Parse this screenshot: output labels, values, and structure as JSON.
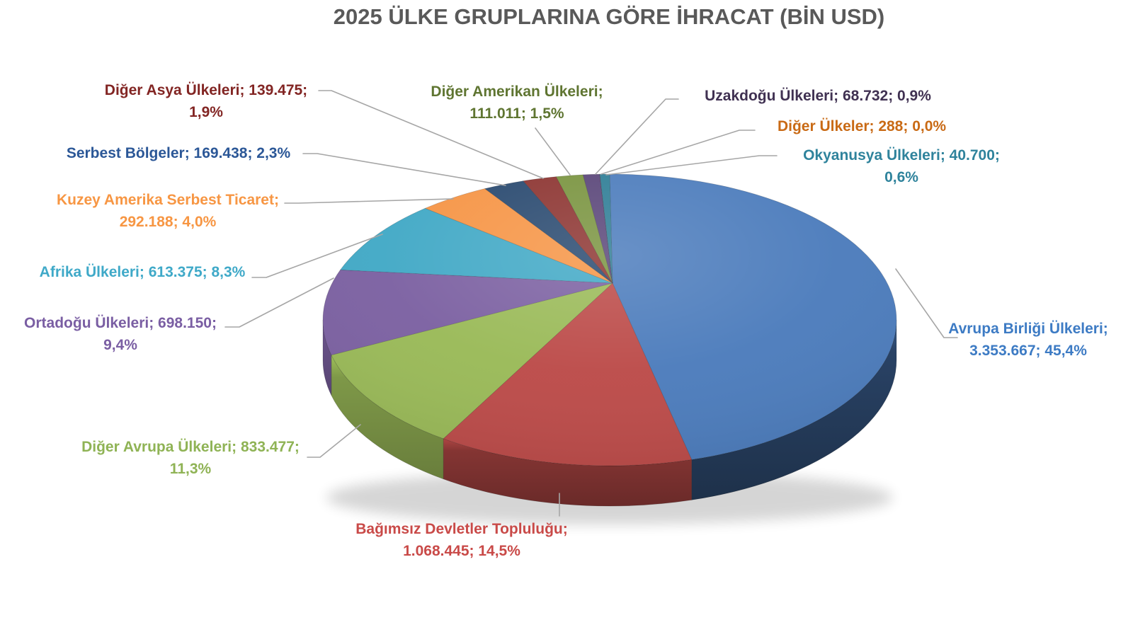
{
  "title": {
    "text": "2025 ÜLKE GRUPLARINA GÖRE İHRACAT (BİN USD)",
    "color": "#595959"
  },
  "chart_data": {
    "type": "pie",
    "style": "3d",
    "title": "2025 ÜLKE GRUPLARINA GÖRE İHRACAT (BİN USD)",
    "unit": "BİN USD",
    "legend_position": "none",
    "label_format": "name; value; percent",
    "leader_line_color": "#A6A6A6",
    "start_angle_deg": 0,
    "direction": "clockwise",
    "slices": [
      {
        "name": "Avrupa Birliği Ülkeleri",
        "value": 3353667,
        "value_text": "3.353.667",
        "pct": 45.4,
        "pct_text": "45,4%",
        "color": "#4C7CBC",
        "label_color": "#3D7BC4",
        "label": "Avrupa Birliği Ülkeleri; 3.353.667; 45,4%",
        "label_lines": [
          "Avrupa Birliği Ülkeleri;",
          "3.353.667; 45,4%"
        ]
      },
      {
        "name": "Bağımsız Devletler Topluluğu",
        "value": 1068445,
        "value_text": "1.068.445",
        "pct": 14.5,
        "pct_text": "14,5%",
        "color": "#BC4B49",
        "label_color": "#C94A48",
        "label": "Bağımsız Devletler Topluluğu; 1.068.445; 14,5%",
        "label_lines": [
          "Bağımsız Devletler Topluluğu;",
          "1.068.445; 14,5%"
        ]
      },
      {
        "name": "Diğer Avrupa Ülkeleri",
        "value": 833477,
        "value_text": "833.477",
        "pct": 11.3,
        "pct_text": "11,3%",
        "color": "#9ABA58",
        "label_color": "#8FB355",
        "label": "Diğer Avrupa Ülkeleri; 833.477; 11,3%",
        "label_lines": [
          "Diğer Avrupa Ülkeleri; 833.477;",
          "11,3%"
        ]
      },
      {
        "name": "Ortadoğu Ülkeleri",
        "value": 698150,
        "value_text": "698.150",
        "pct": 9.4,
        "pct_text": "9,4%",
        "color": "#7C61A2",
        "label_color": "#7A5EA3",
        "label": "Ortadoğu Ülkeleri; 698.150; 9,4%",
        "label_lines": [
          "Ortadoğu Ülkeleri; 698.150;",
          "9,4%"
        ]
      },
      {
        "name": "Afrika Ülkeleri",
        "value": 613375,
        "value_text": "613.375",
        "pct": 8.3,
        "pct_text": "8,3%",
        "color": "#42A9C6",
        "label_color": "#3FA9C8",
        "label": "Afrika Ülkeleri; 613.375; 8,3%",
        "label_lines": [
          "Afrika Ülkeleri; 613.375; 8,3%"
        ]
      },
      {
        "name": "Kuzey Amerika Serbest Ticaret",
        "value": 292188,
        "value_text": "292.188",
        "pct": 4.0,
        "pct_text": "4,0%",
        "color": "#F69546",
        "label_color": "#F79643",
        "label": "Kuzey Amerika Serbest Ticaret; 292.188; 4,0%",
        "label_lines": [
          "Kuzey Amerika Serbest Ticaret;",
          "292.188; 4,0%"
        ]
      },
      {
        "name": "Serbest Bölgeler",
        "value": 169438,
        "value_text": "169.438",
        "pct": 2.3,
        "pct_text": "2,3%",
        "color": "#2A4A70",
        "label_color": "#2B5797",
        "label": "Serbest Bölgeler; 169.438; 2,3%",
        "label_lines": [
          "Serbest Bölgeler; 169.438; 2,3%"
        ]
      },
      {
        "name": "Diğer Asya Ülkeleri",
        "value": 139475,
        "value_text": "139.475",
        "pct": 1.9,
        "pct_text": "1,9%",
        "color": "#8D3532",
        "label_color": "#822523",
        "label": "Diğer Asya Ülkeleri; 139.475; 1,9%",
        "label_lines": [
          "Diğer Asya Ülkeleri; 139.475;",
          "1,9%"
        ]
      },
      {
        "name": "Diğer Amerikan Ülkeleri",
        "value": 111011,
        "value_text": "111.011",
        "pct": 1.5,
        "pct_text": "1,5%",
        "color": "#7A9440",
        "label_color": "#5F7531",
        "label": "Diğer Amerikan Ülkeleri; 111.011; 1,5%",
        "label_lines": [
          "Diğer Amerikan Ülkeleri;",
          "111.011; 1,5%"
        ]
      },
      {
        "name": "Uzakdoğu Ülkeleri",
        "value": 68732,
        "value_text": "68.732",
        "pct": 0.9,
        "pct_text": "0,9%",
        "color": "#5A4679",
        "label_color": "#403152",
        "label": "Uzakdoğu Ülkeleri; 68.732; 0,9%",
        "label_lines": [
          "Uzakdoğu Ülkeleri; 68.732; 0,9%"
        ]
      },
      {
        "name": "Diğer Ülkeler",
        "value": 288,
        "value_text": "288",
        "pct": 0.0,
        "pct_text": "0,0%",
        "color": "#E46C0A",
        "label_color": "#C96A15",
        "label": "Diğer Ülkeler; 288; 0,0%",
        "label_lines": [
          "Diğer Ülkeler; 288; 0,0%"
        ]
      },
      {
        "name": "Okyanusya Ülkeleri",
        "value": 40700,
        "value_text": "40.700",
        "pct": 0.6,
        "pct_text": "0,6%",
        "color": "#2F7E96",
        "label_color": "#2F839C",
        "label": "Okyanusya Ülkeleri; 40.700; 0,6%",
        "label_lines": [
          "Okyanusya Ülkeleri; 40.700;",
          "0,6%"
        ]
      }
    ]
  }
}
